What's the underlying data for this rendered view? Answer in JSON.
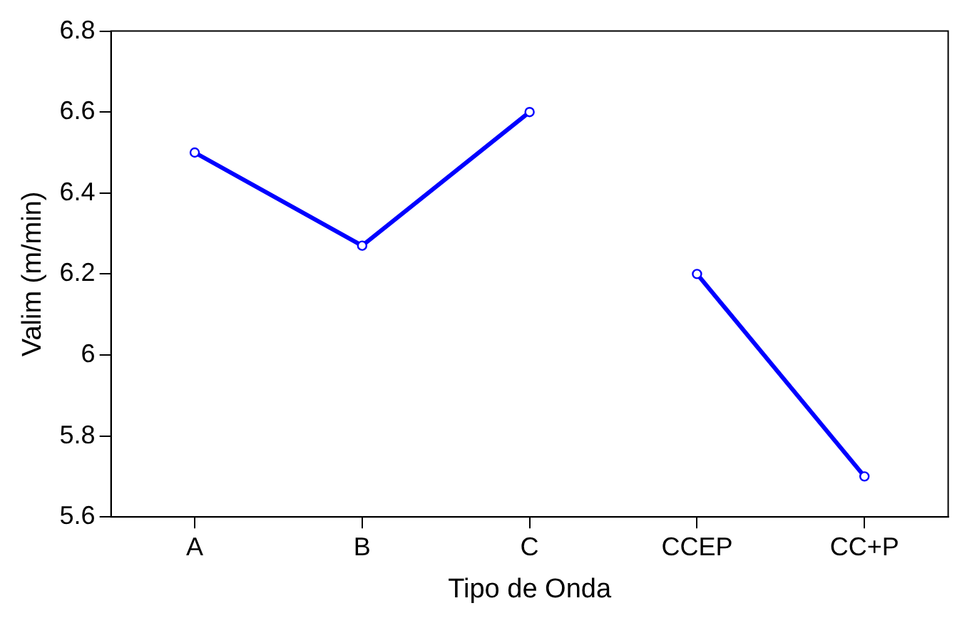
{
  "chart_data": {
    "type": "line",
    "xlabel": "Tipo de Onda",
    "ylabel": "Valim (m/min)",
    "categories": [
      "A",
      "B",
      "C",
      "CCEP",
      "CC+P"
    ],
    "series": [
      {
        "color": "#0000ff",
        "values": [
          6.5,
          6.27,
          6.6,
          null,
          null
        ]
      },
      {
        "color": "#0000ff",
        "values": [
          null,
          null,
          null,
          6.2,
          5.7
        ]
      }
    ],
    "ylim": [
      5.6,
      6.8
    ],
    "yticks": [
      5.6,
      5.8,
      6,
      6.2,
      6.4,
      6.6,
      6.8
    ],
    "grid": false,
    "legend": false,
    "marker": "circle",
    "line_style": "solid"
  }
}
